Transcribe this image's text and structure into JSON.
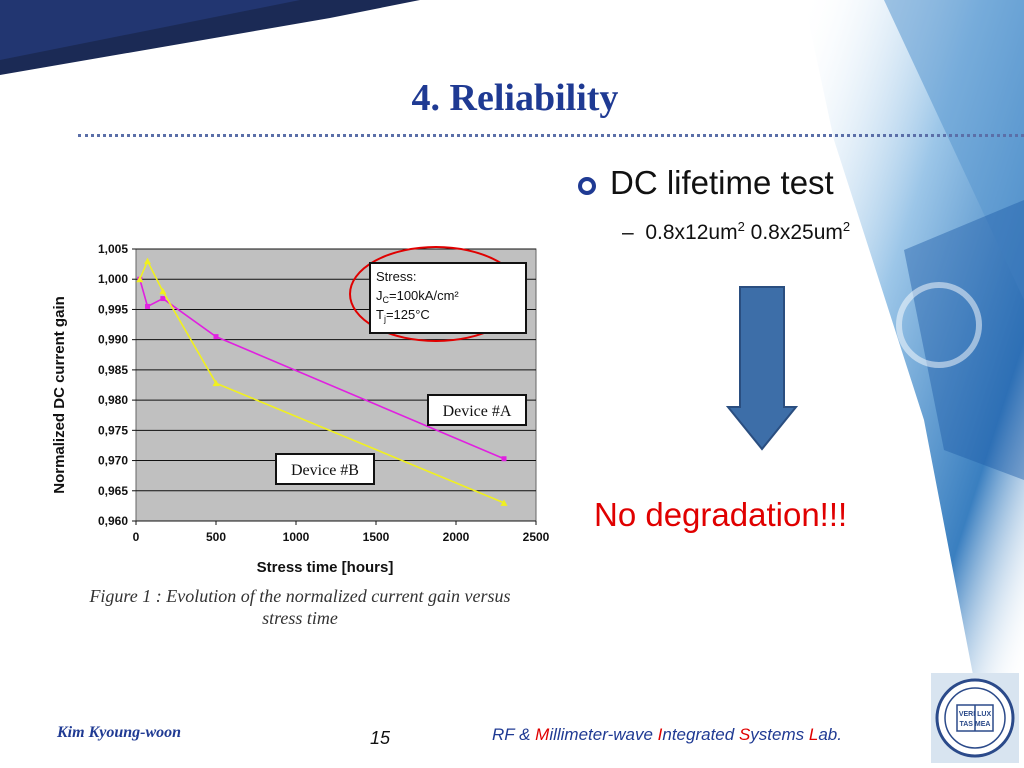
{
  "slide": {
    "title": "4. Reliability",
    "bullet": "DC lifetime test",
    "sub_a": "0.8x12um",
    "sub_a_sup": "2",
    "sub_b": "0.8x25um",
    "sub_b_sup": "2",
    "conclusion": "No degradation!!!",
    "caption_line1": "Figure 1 : Evolution of the normalized current gain versus",
    "caption_line2": "stress time"
  },
  "footer": {
    "author": "Kim Kyoung-woon",
    "page": "15",
    "lab_parts": [
      {
        "t": "RF & ",
        "red": false
      },
      {
        "t": "M",
        "red": true
      },
      {
        "t": "illimeter-wave ",
        "red": false
      },
      {
        "t": "I",
        "red": true
      },
      {
        "t": "ntegrated ",
        "red": false
      },
      {
        "t": "S",
        "red": true
      },
      {
        "t": "ystems ",
        "red": false
      },
      {
        "t": "L",
        "red": true
      },
      {
        "t": "ab.",
        "red": false
      }
    ]
  },
  "logo": {
    "line1": "VERI LUX",
    "line2": "TAS MEA"
  },
  "colors": {
    "title": "#1f3a93",
    "accent_red": "#e00000",
    "series_a": "#e020e0",
    "series_b": "#f0f020",
    "plot_bg": "#c0c0c0",
    "arrow": "#3d6ea8"
  },
  "chart_data": {
    "type": "line",
    "xlabel": "Stress time [hours]",
    "ylabel": "Normalized DC current gain",
    "xlim": [
      0,
      2500
    ],
    "ylim": [
      0.96,
      1.005
    ],
    "xticks": [
      0,
      500,
      1000,
      1500,
      2000,
      2500
    ],
    "xtick_labels": [
      "0",
      "500",
      "1000",
      "1500",
      "2000",
      "2500"
    ],
    "yticks": [
      0.96,
      0.965,
      0.97,
      0.975,
      0.98,
      0.985,
      0.99,
      0.995,
      1.0,
      1.005
    ],
    "ytick_labels": [
      "0,960",
      "0,965",
      "0,970",
      "0,975",
      "0,980",
      "0,985",
      "0,990",
      "0,995",
      "1,000",
      "1,005"
    ],
    "grid": "horizontal",
    "series": [
      {
        "name": "Device #A",
        "color": "#e020e0",
        "x": [
          24,
          72,
          168,
          500,
          2300
        ],
        "y": [
          1.0,
          0.9955,
          0.9968,
          0.9905,
          0.9703
        ]
      },
      {
        "name": "Device #B",
        "color": "#f0f020",
        "x": [
          24,
          72,
          168,
          500,
          2300
        ],
        "y": [
          1.0,
          1.003,
          0.998,
          0.9828,
          0.963
        ]
      }
    ],
    "annotation": {
      "line1": "Stress:",
      "jc_a": "J",
      "jc_sub": "C",
      "jc_b": "=100kA/cm²",
      "tj_a": "T",
      "tj_sub": "j",
      "tj_b": "=125°C"
    }
  }
}
